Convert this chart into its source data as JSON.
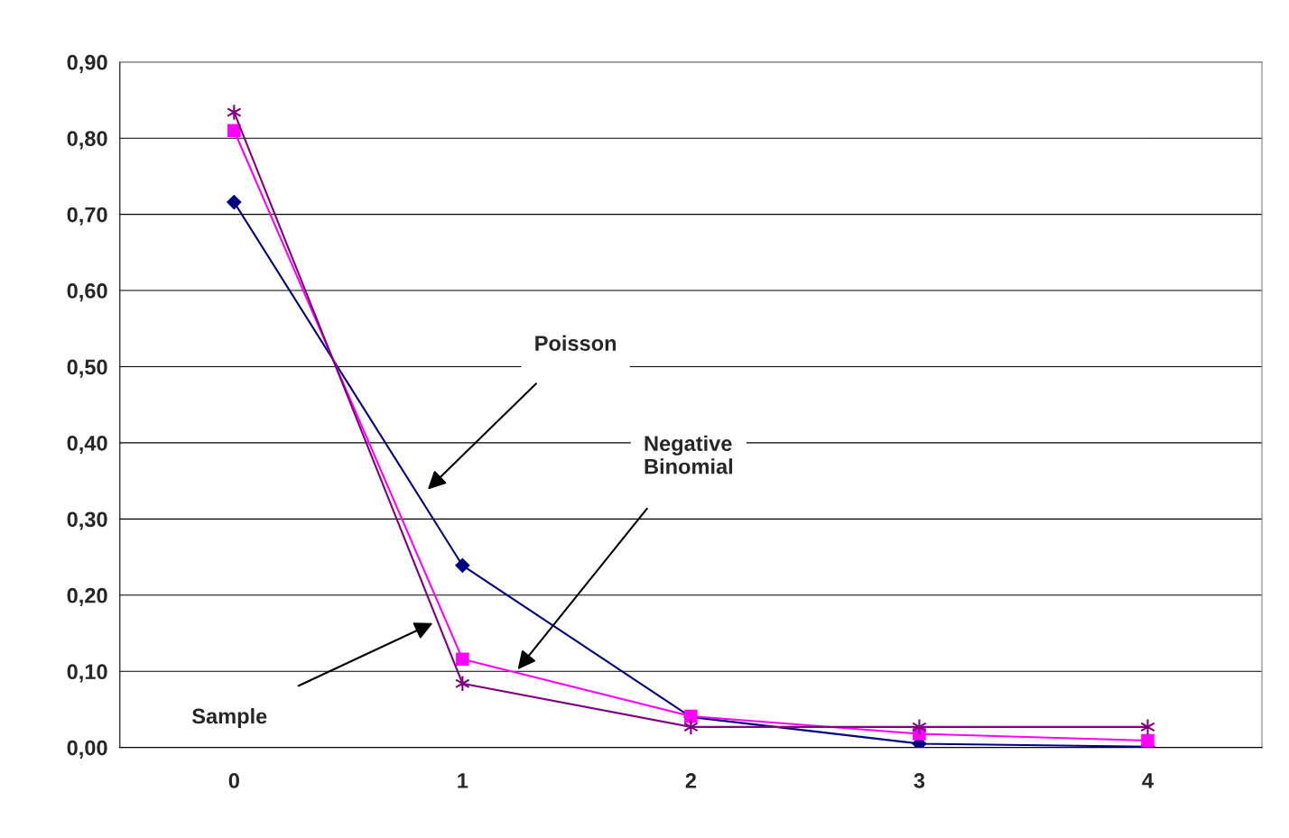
{
  "chart_data": {
    "type": "line",
    "x": [
      0,
      1,
      2,
      3,
      4
    ],
    "xlim": [
      -0.5,
      4.5
    ],
    "xticks": [
      0,
      1,
      2,
      3,
      4
    ],
    "ylim": [
      0,
      0.9
    ],
    "yticks": [
      {
        "value": 0,
        "label": "0,00"
      },
      {
        "value": 0.1,
        "label": "0,10"
      },
      {
        "value": 0.2,
        "label": "0,20"
      },
      {
        "value": 0.3,
        "label": "0,30"
      },
      {
        "value": 0.4,
        "label": "0,40"
      },
      {
        "value": 0.5,
        "label": "0,50"
      },
      {
        "value": 0.6,
        "label": "0,60"
      },
      {
        "value": 0.7,
        "label": "0,70"
      },
      {
        "value": 0.8,
        "label": "0,80"
      },
      {
        "value": 0.9,
        "label": "0,90"
      }
    ],
    "grid": "y",
    "legend": false,
    "series": [
      {
        "color": "#000080",
        "marker": "diamond",
        "values": [
          0.716,
          0.239,
          0.04,
          0.005,
          0.001
        ]
      },
      {
        "color": "#ff00ff",
        "marker": "square",
        "values": [
          0.81,
          0.116,
          0.041,
          0.018,
          0.009
        ]
      },
      {
        "color": "#800080",
        "marker": "cross",
        "values": [
          0.834,
          0.084,
          0.027,
          0.027,
          0.027
        ]
      }
    ],
    "annotations": [
      "Poisson",
      "Negative\nBinomial",
      "Sample"
    ]
  }
}
